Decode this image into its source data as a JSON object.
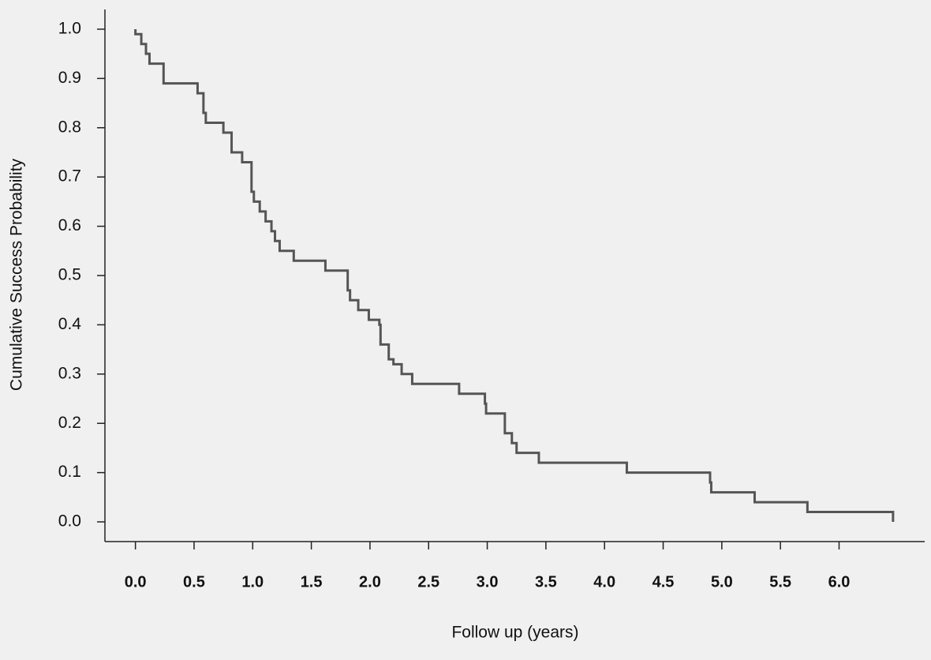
{
  "chart_data": {
    "type": "line",
    "step": true,
    "xlabel": "Follow up (years)",
    "ylabel": "Cumulative Success Probability",
    "color": "#555555",
    "x": [
      0,
      0,
      0.05,
      0.05,
      0.09,
      0.09,
      0.12,
      0.12,
      0.24,
      0.24,
      0.53,
      0.53,
      0.58,
      0.58,
      0.6,
      0.6,
      0.75,
      0.75,
      0.82,
      0.82,
      0.91,
      0.91,
      0.99,
      0.99,
      1.01,
      1.01,
      1.06,
      1.06,
      1.11,
      1.11,
      1.16,
      1.16,
      1.19,
      1.19,
      1.23,
      1.23,
      1.35,
      1.35,
      1.62,
      1.62,
      1.81,
      1.81,
      1.83,
      1.83,
      1.9,
      1.9,
      1.99,
      1.99,
      2.08,
      2.08,
      2.09,
      2.09,
      2.16,
      2.16,
      2.2,
      2.2,
      2.27,
      2.27,
      2.36,
      2.36,
      2.76,
      2.76,
      2.98,
      2.98,
      2.99,
      2.99,
      3.15,
      3.15,
      3.21,
      3.21,
      3.25,
      3.25,
      3.44,
      3.44,
      4.19,
      4.19,
      4.9,
      4.9,
      4.91,
      4.91,
      5.28,
      5.28,
      5.73,
      5.73,
      6.46,
      6.46
    ],
    "values": [
      1,
      0.99,
      0.99,
      0.97,
      0.97,
      0.95,
      0.95,
      0.93,
      0.93,
      0.89,
      0.89,
      0.87,
      0.87,
      0.83,
      0.83,
      0.81,
      0.81,
      0.79,
      0.79,
      0.75,
      0.75,
      0.73,
      0.73,
      0.67,
      0.67,
      0.65,
      0.65,
      0.63,
      0.63,
      0.61,
      0.61,
      0.59,
      0.59,
      0.57,
      0.57,
      0.55,
      0.55,
      0.53,
      0.53,
      0.51,
      0.51,
      0.47,
      0.47,
      0.45,
      0.45,
      0.43,
      0.43,
      0.41,
      0.41,
      0.4,
      0.4,
      0.36,
      0.36,
      0.33,
      0.33,
      0.32,
      0.32,
      0.3,
      0.3,
      0.28,
      0.28,
      0.26,
      0.26,
      0.24,
      0.24,
      0.22,
      0.22,
      0.18,
      0.18,
      0.16,
      0.16,
      0.14,
      0.14,
      0.12,
      0.12,
      0.1,
      0.1,
      0.08,
      0.08,
      0.06,
      0.06,
      0.04,
      0.04,
      0.02,
      0.02,
      0
    ],
    "xlim": [
      -0.26,
      6.73
    ],
    "ylim": [
      -0.04,
      1.04
    ],
    "xticks": [
      {
        "value": 0,
        "label": "0.0"
      },
      0.5,
      {
        "value": 1,
        "label": "1.0"
      },
      1.5,
      {
        "value": 2,
        "label": "2.0"
      },
      2.5,
      {
        "value": 3,
        "label": "3.0"
      },
      3.5,
      {
        "value": 4,
        "label": "4.0"
      },
      4.5,
      {
        "value": 5,
        "label": "5.0"
      },
      5.5,
      {
        "value": 6,
        "label": "6.0"
      }
    ],
    "yticks": [
      {
        "value": 0,
        "label": "0.0"
      },
      0.1,
      0.2,
      0.3,
      0.4,
      0.5,
      0.6,
      0.7,
      0.8,
      0.9,
      {
        "value": 1,
        "label": "1.0"
      }
    ]
  }
}
